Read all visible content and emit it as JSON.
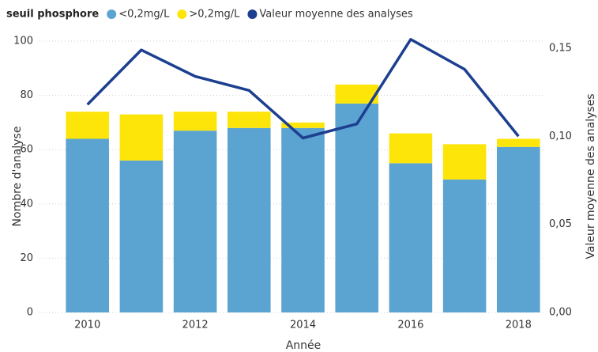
{
  "chart_data": {
    "type": "bar-line",
    "legend_title": "seuil phosphore",
    "x": [
      2010,
      2011,
      2012,
      2013,
      2014,
      2015,
      2016,
      2017,
      2018
    ],
    "xlim": [
      2009.55,
      2018.45
    ],
    "xticks": [
      2010,
      2012,
      2014,
      2016,
      2018
    ],
    "x_label": "Année",
    "y_label": "Nombre d'analyse",
    "y2_label": "Valeur moyenne des analyses",
    "ylim": [
      0,
      100
    ],
    "yticks": [
      0,
      20,
      40,
      60,
      80,
      100
    ],
    "y2lim": [
      0,
      0.154
    ],
    "y2ticks": [
      {
        "value": 0,
        "label": "0,00"
      },
      {
        "value": 0.05,
        "label": "0,05"
      },
      {
        "value": 0.1,
        "label": "0,10"
      },
      {
        "value": 0.15,
        "label": "0,15"
      }
    ],
    "grid": true,
    "series": [
      {
        "name": "<0,2mg/L",
        "color": "#5ba3d1",
        "kind": "bar",
        "values": [
          64,
          56,
          67,
          68,
          68,
          77,
          55,
          49,
          61
        ]
      },
      {
        "name": ">0,2mg/L",
        "color": "#fde50a",
        "kind": "bar",
        "values": [
          10,
          17,
          7,
          6,
          2,
          7,
          11,
          13,
          3
        ]
      },
      {
        "name": "Valeur moyenne des analyses",
        "color": "#1c3f8f",
        "kind": "line",
        "axis": "y2",
        "values": [
          0.118,
          0.149,
          0.134,
          0.126,
          0.099,
          0.107,
          0.155,
          0.138,
          0.1
        ]
      }
    ]
  }
}
